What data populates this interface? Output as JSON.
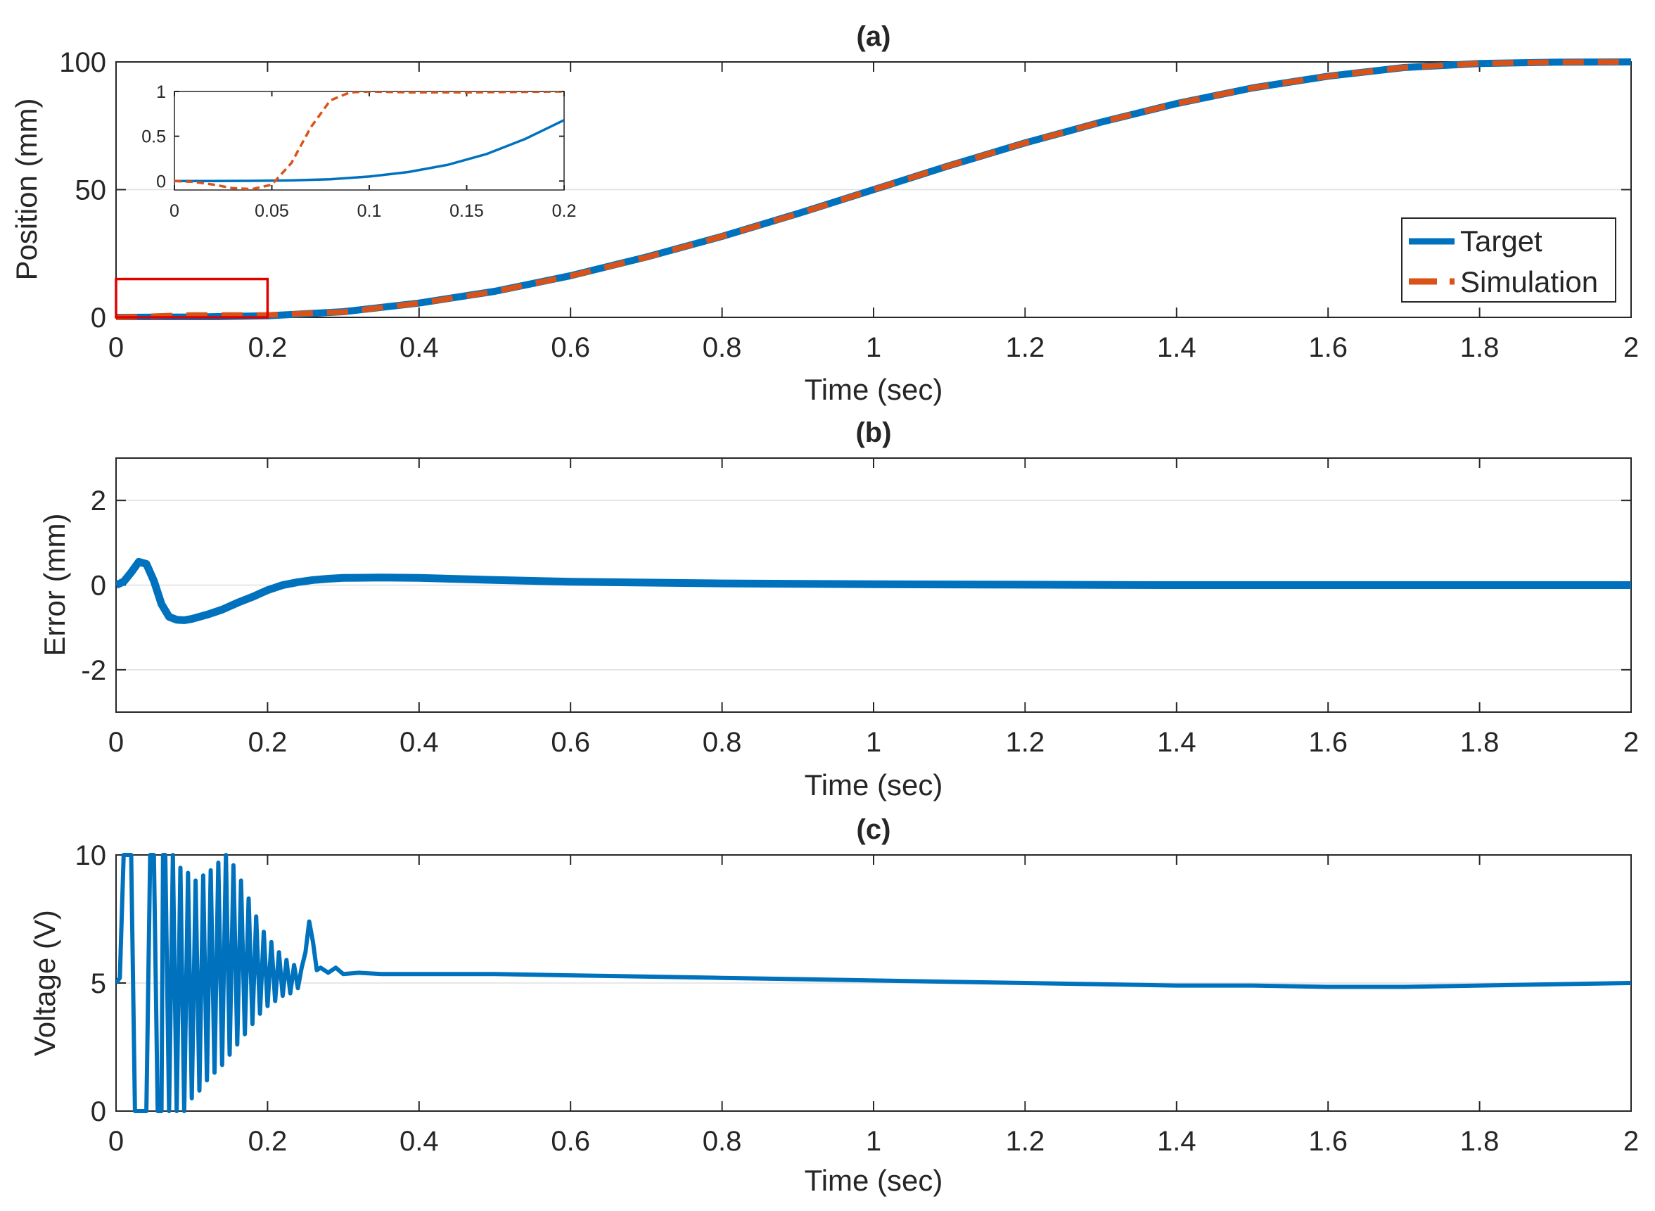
{
  "colors": {
    "target": "#0072BD",
    "simulation": "#D95319",
    "zoom_box": "#E00000",
    "axis": "#262626",
    "grid": "#DFDFDF"
  },
  "chart_data": [
    {
      "panel": "a",
      "type": "line",
      "title": "(a)",
      "xlabel": "Time (sec)",
      "ylabel": "Position (mm)",
      "xlim": [
        0,
        2
      ],
      "ylim": [
        0,
        100
      ],
      "xticks": [
        0,
        0.2,
        0.4,
        0.6,
        0.8,
        1,
        1.2,
        1.4,
        1.6,
        1.8,
        2
      ],
      "yticks": [
        0,
        50,
        100
      ],
      "grid": "y",
      "legend": {
        "location": "bottom-right",
        "entries": [
          "Target",
          "Simulation"
        ]
      },
      "series": [
        {
          "name": "Target",
          "style": "solid",
          "x": [
            0,
            0.1,
            0.2,
            0.3,
            0.4,
            0.5,
            0.6,
            0.7,
            0.8,
            0.9,
            1.0,
            1.1,
            1.2,
            1.3,
            1.4,
            1.5,
            1.6,
            1.7,
            1.8,
            1.9,
            2.0
          ],
          "values": [
            0,
            0.1,
            0.6,
            2.2,
            5.6,
            10.2,
            16.3,
            23.6,
            31.7,
            40.6,
            50.0,
            59.4,
            68.3,
            76.4,
            83.7,
            89.8,
            94.4,
            97.8,
            99.4,
            99.9,
            100
          ]
        },
        {
          "name": "Simulation",
          "style": "dashed",
          "x": [
            0,
            0.1,
            0.2,
            0.3,
            0.4,
            0.5,
            0.6,
            0.7,
            0.8,
            0.9,
            1.0,
            1.1,
            1.2,
            1.3,
            1.4,
            1.5,
            1.6,
            1.7,
            1.8,
            1.9,
            2.0
          ],
          "values": [
            0,
            0.9,
            0.9,
            2.1,
            5.5,
            10.1,
            16.2,
            23.5,
            31.7,
            40.5,
            50.0,
            59.4,
            68.3,
            76.4,
            83.7,
            89.8,
            94.4,
            97.8,
            99.4,
            99.9,
            100
          ]
        }
      ],
      "zoom_region": {
        "x": [
          0,
          0.2
        ],
        "y": [
          0,
          15
        ]
      },
      "inset": {
        "xlim": [
          0,
          0.2
        ],
        "ylim": [
          -0.1,
          1
        ],
        "xticks": [
          0,
          0.05,
          0.1,
          0.15,
          0.2
        ],
        "yticks": [
          0,
          0.5,
          1
        ],
        "series": [
          {
            "name": "Target",
            "style": "solid",
            "x": [
              0,
              0.02,
              0.04,
              0.06,
              0.08,
              0.1,
              0.12,
              0.14,
              0.16,
              0.18,
              0.2
            ],
            "values": [
              0,
              0,
              0.002,
              0.007,
              0.02,
              0.05,
              0.1,
              0.18,
              0.3,
              0.47,
              0.68
            ]
          },
          {
            "name": "Simulation",
            "style": "dashed",
            "x": [
              0,
              0.01,
              0.02,
              0.03,
              0.04,
              0.05,
              0.06,
              0.07,
              0.08,
              0.09,
              0.1,
              0.12,
              0.15,
              0.2
            ],
            "values": [
              0,
              -0.01,
              -0.04,
              -0.08,
              -0.09,
              -0.04,
              0.2,
              0.6,
              0.9,
              0.99,
              1.0,
              0.99,
              0.99,
              1.0
            ]
          }
        ]
      }
    },
    {
      "panel": "b",
      "type": "line",
      "title": "(b)",
      "xlabel": "Time (sec)",
      "ylabel": "Error (mm)",
      "xlim": [
        0,
        2
      ],
      "ylim": [
        -3,
        3
      ],
      "xticks": [
        0,
        0.2,
        0.4,
        0.6,
        0.8,
        1,
        1.2,
        1.4,
        1.6,
        1.8,
        2
      ],
      "yticks": [
        -2,
        0,
        2
      ],
      "grid": "y",
      "series": [
        {
          "name": "",
          "style": "solid",
          "x": [
            0,
            0.01,
            0.02,
            0.03,
            0.04,
            0.05,
            0.06,
            0.07,
            0.08,
            0.09,
            0.1,
            0.12,
            0.14,
            0.16,
            0.18,
            0.2,
            0.22,
            0.24,
            0.26,
            0.28,
            0.3,
            0.35,
            0.4,
            0.5,
            0.6,
            0.8,
            1.0,
            1.2,
            1.4,
            1.6,
            1.8,
            2.0
          ],
          "values": [
            0,
            0.08,
            0.3,
            0.55,
            0.5,
            0.1,
            -0.45,
            -0.75,
            -0.82,
            -0.83,
            -0.8,
            -0.7,
            -0.58,
            -0.42,
            -0.28,
            -0.12,
            0.0,
            0.07,
            0.12,
            0.15,
            0.17,
            0.18,
            0.17,
            0.12,
            0.08,
            0.04,
            0.02,
            0.01,
            0.0,
            0.0,
            0.0,
            0.0
          ]
        }
      ]
    },
    {
      "panel": "c",
      "type": "line",
      "title": "(c)",
      "xlabel": "Time (sec)",
      "ylabel": "Voltage (V)",
      "xlim": [
        0,
        2
      ],
      "ylim": [
        0,
        10
      ],
      "xticks": [
        0,
        0.2,
        0.4,
        0.6,
        0.8,
        1,
        1.2,
        1.4,
        1.6,
        1.8,
        2
      ],
      "yticks": [
        0,
        5,
        10
      ],
      "grid": "y",
      "series": [
        {
          "name": "",
          "style": "solid",
          "x": [
            0,
            0.005,
            0.01,
            0.012,
            0.02,
            0.025,
            0.028,
            0.035,
            0.04,
            0.045,
            0.05,
            0.055,
            0.06,
            0.062,
            0.065,
            0.07,
            0.075,
            0.08,
            0.085,
            0.09,
            0.095,
            0.1,
            0.105,
            0.11,
            0.115,
            0.12,
            0.125,
            0.13,
            0.135,
            0.14,
            0.145,
            0.15,
            0.155,
            0.16,
            0.165,
            0.17,
            0.175,
            0.18,
            0.185,
            0.19,
            0.195,
            0.2,
            0.205,
            0.21,
            0.215,
            0.22,
            0.225,
            0.23,
            0.235,
            0.24,
            0.245,
            0.25,
            0.255,
            0.26,
            0.265,
            0.27,
            0.28,
            0.29,
            0.3,
            0.32,
            0.35,
            0.4,
            0.5,
            0.6,
            0.7,
            0.8,
            0.9,
            1.0,
            1.1,
            1.2,
            1.3,
            1.4,
            1.5,
            1.6,
            1.7,
            1.8,
            1.9,
            2.0
          ],
          "values": [
            5.0,
            5.2,
            10,
            10,
            10,
            0,
            0,
            0,
            0,
            10,
            10,
            0,
            0,
            10,
            10,
            0,
            10,
            0,
            9.5,
            0,
            9.3,
            0.5,
            9.0,
            0.8,
            9.2,
            1.2,
            9.4,
            1.5,
            9.7,
            1.8,
            10,
            2.2,
            9.6,
            2.6,
            9.0,
            3.0,
            8.3,
            3.4,
            7.6,
            3.8,
            7.0,
            4.1,
            6.6,
            4.3,
            6.2,
            4.5,
            5.9,
            4.6,
            5.7,
            4.8,
            5.6,
            6.2,
            7.4,
            6.6,
            5.5,
            5.6,
            5.4,
            5.6,
            5.35,
            5.4,
            5.35,
            5.35,
            5.35,
            5.3,
            5.25,
            5.2,
            5.15,
            5.1,
            5.05,
            5.0,
            4.95,
            4.9,
            4.9,
            4.85,
            4.85,
            4.9,
            4.95,
            5.0
          ]
        }
      ]
    }
  ]
}
